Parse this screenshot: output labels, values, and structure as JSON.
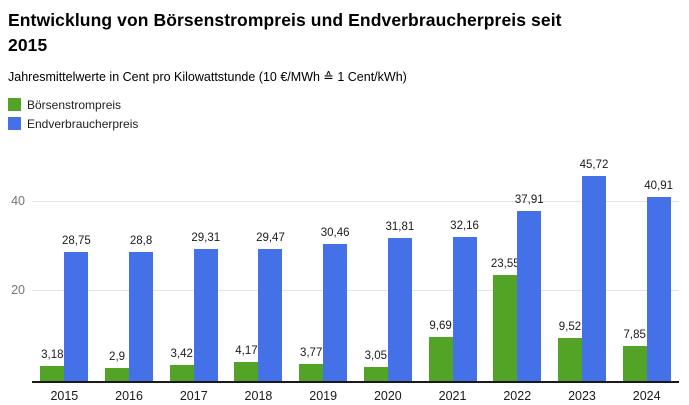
{
  "header": {
    "title": "Entwicklung von Börsenstrompreis und Endverbraucherpreis seit\n2015",
    "subtitle": "Jahresmittelwerte in Cent pro Kilowattstunde (10 €/MWh ≙ 1 Cent/kWh)"
  },
  "legend": {
    "items": [
      {
        "label": "Börsenstrompreis",
        "color": "#53a326"
      },
      {
        "label": "Endverbraucherpreis",
        "color": "#4571e8"
      }
    ]
  },
  "chart_data": {
    "type": "bar",
    "title": "Entwicklung von Börsenstrompreis und Endverbraucherpreis seit 2015",
    "subtitle": "Jahresmittelwerte in Cent pro Kilowattstunde (10 €/MWh ≙ 1 Cent/kWh)",
    "categories": [
      "2015",
      "2016",
      "2017",
      "2018",
      "2019",
      "2020",
      "2021",
      "2022",
      "2023",
      "2024"
    ],
    "series": [
      {
        "name": "Börsenstrompreis",
        "color": "#53a326",
        "values": [
          3.18,
          2.9,
          3.42,
          4.17,
          3.77,
          3.05,
          9.69,
          23.55,
          9.52,
          7.85
        ],
        "labels": [
          "3,18",
          "2,9",
          "3,42",
          "4,17",
          "3,77",
          "3,05",
          "9,69",
          "23,55",
          "9,52",
          "7,85"
        ]
      },
      {
        "name": "Endverbraucherpreis",
        "color": "#4571e8",
        "values": [
          28.75,
          28.8,
          29.31,
          29.47,
          30.46,
          31.81,
          32.16,
          37.91,
          45.72,
          40.91
        ],
        "labels": [
          "28,75",
          "28,8",
          "29,31",
          "29,47",
          "30,46",
          "31,81",
          "32,16",
          "37,91",
          "45,72",
          "40,91"
        ]
      }
    ],
    "xlabel": "",
    "ylabel": "",
    "yticks": [
      20,
      40
    ],
    "ylim": [
      0,
      50
    ],
    "grid": true,
    "legend_position": "top-left",
    "value_labels_shown": true
  }
}
